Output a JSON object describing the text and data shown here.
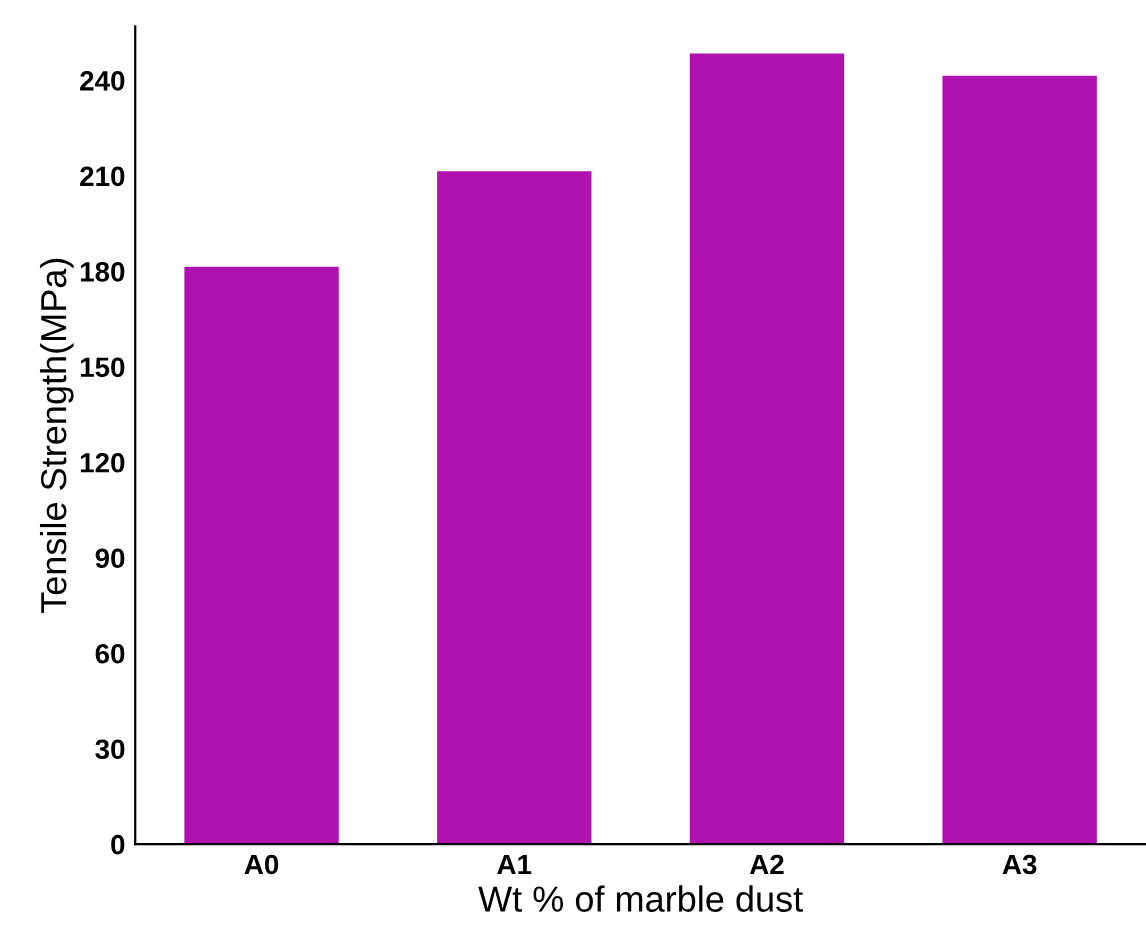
{
  "chart_data": {
    "type": "bar",
    "xlabel": "Wt % of marble dust",
    "ylabel": "Tensile Strength(MPa)",
    "categories": [
      "A0",
      "A1",
      "A2",
      "A3"
    ],
    "values": [
      181,
      211,
      248,
      241
    ],
    "color": "#b012b0",
    "ylim": [
      0,
      257
    ],
    "yticks": [
      0,
      30,
      60,
      90,
      120,
      150,
      180,
      210,
      240
    ],
    "grid": false,
    "legend": false
  }
}
